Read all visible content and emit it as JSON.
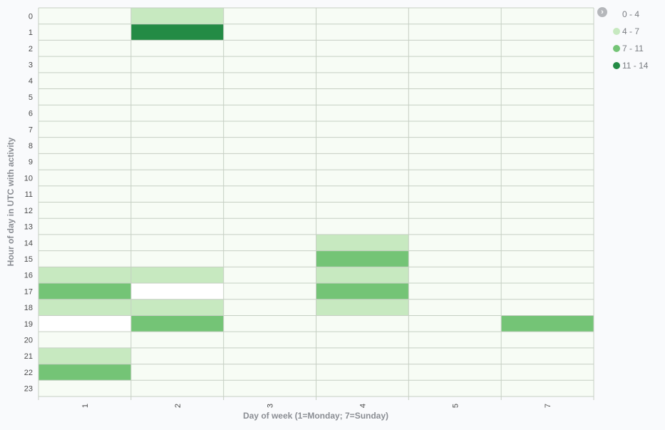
{
  "chart_data": {
    "type": "heatmap",
    "title": "",
    "xlabel": "Day of week (1=Monday; 7=Sunday)",
    "ylabel": "Hour of day in UTC with activity",
    "x_categories": [
      "1",
      "2",
      "3",
      "4",
      "5",
      "7"
    ],
    "y_categories": [
      "0",
      "1",
      "2",
      "3",
      "4",
      "5",
      "6",
      "7",
      "8",
      "9",
      "10",
      "11",
      "12",
      "13",
      "14",
      "15",
      "16",
      "17",
      "18",
      "19",
      "20",
      "21",
      "22",
      "23"
    ],
    "bins": [
      {
        "label": "0 - 4",
        "color": "#f7fcf5"
      },
      {
        "label": "4 - 7",
        "color": "#c7e9c0"
      },
      {
        "label": "7 - 11",
        "color": "#74c476"
      },
      {
        "label": "11 - 14",
        "color": "#238b45"
      }
    ],
    "cells": [
      {
        "x": "2",
        "y": "0",
        "bin": 1
      },
      {
        "x": "2",
        "y": "1",
        "bin": 3
      },
      {
        "x": "4",
        "y": "14",
        "bin": 1
      },
      {
        "x": "4",
        "y": "15",
        "bin": 2
      },
      {
        "x": "1",
        "y": "16",
        "bin": 1
      },
      {
        "x": "2",
        "y": "16",
        "bin": 1
      },
      {
        "x": "4",
        "y": "16",
        "bin": 1
      },
      {
        "x": "1",
        "y": "17",
        "bin": 2
      },
      {
        "x": "2",
        "y": "17",
        "bin": null
      },
      {
        "x": "4",
        "y": "17",
        "bin": 2
      },
      {
        "x": "1",
        "y": "18",
        "bin": 1
      },
      {
        "x": "2",
        "y": "18",
        "bin": 1
      },
      {
        "x": "4",
        "y": "18",
        "bin": 1
      },
      {
        "x": "1",
        "y": "19",
        "bin": null
      },
      {
        "x": "2",
        "y": "19",
        "bin": 2
      },
      {
        "x": "7",
        "y": "19",
        "bin": 2
      },
      {
        "x": "1",
        "y": "21",
        "bin": 1
      },
      {
        "x": "1",
        "y": "22",
        "bin": 2
      }
    ],
    "default_bin": 0,
    "empty_color": "#ffffff",
    "grid": true,
    "legend_position": "top-right"
  },
  "legend": {
    "toggle_icon": "chevron-right-icon",
    "toggle_glyph": "›"
  }
}
